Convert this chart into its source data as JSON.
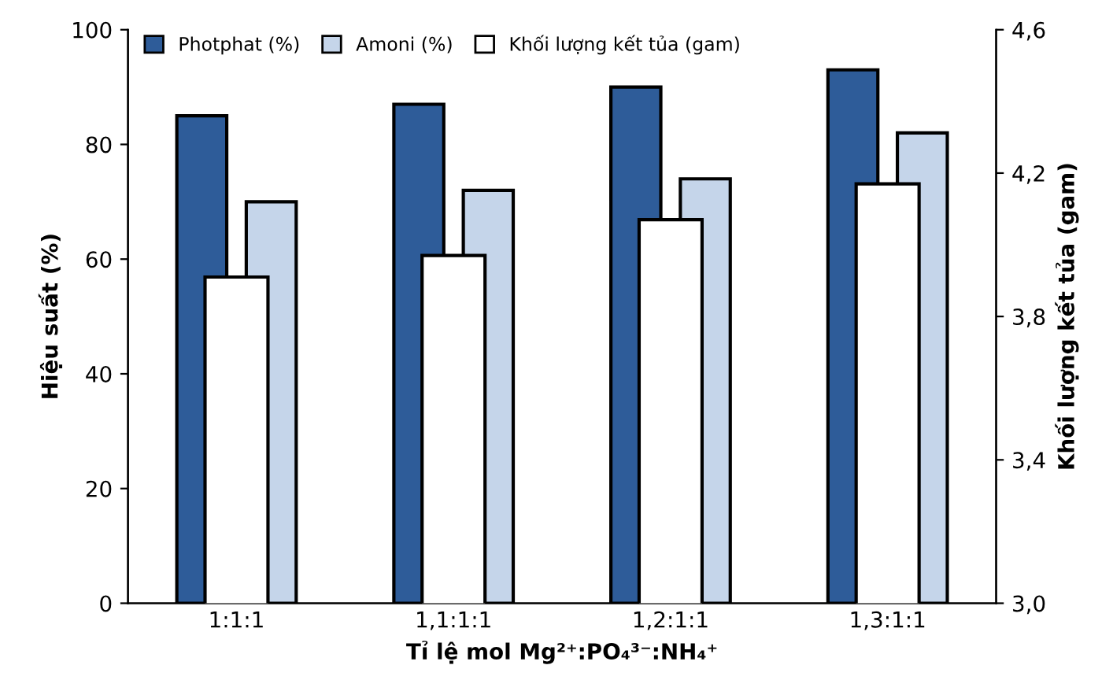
{
  "chart_data": {
    "type": "bar",
    "categories": [
      "1:1:1",
      "1,1:1:1",
      "1,2:1:1",
      "1,3:1:1"
    ],
    "series": [
      {
        "name": "Photphat (%)",
        "color": "#2e5c99",
        "values": [
          85,
          87,
          90,
          93
        ]
      },
      {
        "name": "Amoni (%)",
        "color": "#c5d5ea",
        "values": [
          70,
          72,
          74,
          82
        ]
      },
      {
        "name": "Khối lượng kết tủa (gam)",
        "color": "#ffffff",
        "values": [
          3.91,
          3.97,
          4.07,
          4.17
        ],
        "axis": "y2"
      }
    ],
    "xlabel": "Tỉ lệ mol Mg²⁺:PO₄³⁻:NH₄⁺",
    "ylabel": "Hiệu suất (%)",
    "y2label": "Khối lượng kết tủa (gam)",
    "ylim": [
      0,
      100
    ],
    "yticks": [
      0,
      20,
      40,
      60,
      80,
      100
    ],
    "y2lim": [
      3.0,
      4.6
    ],
    "y2ticks": [
      {
        "value": 3.0,
        "label": "3,0"
      },
      {
        "value": 3.4,
        "label": "3,4"
      },
      {
        "value": 3.8,
        "label": "3,8"
      },
      {
        "value": 4.2,
        "label": "4,2"
      },
      {
        "value": 4.6,
        "label": "4,6"
      }
    ],
    "legend": "top left",
    "grid": false
  }
}
